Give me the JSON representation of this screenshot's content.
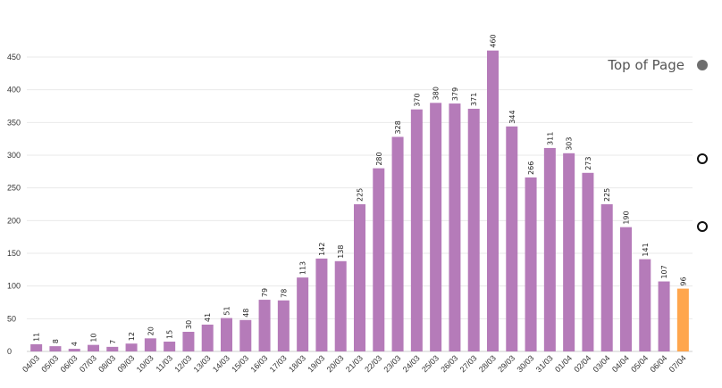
{
  "chart_data": {
    "type": "bar",
    "categories": [
      "04/03",
      "05/03",
      "06/03",
      "07/03",
      "08/03",
      "09/03",
      "10/03",
      "11/03",
      "12/03",
      "13/03",
      "14/03",
      "15/03",
      "16/03",
      "17/03",
      "18/03",
      "19/03",
      "20/03",
      "21/03",
      "22/03",
      "23/03",
      "24/03",
      "25/03",
      "26/03",
      "27/03",
      "28/03",
      "29/03",
      "30/03",
      "31/03",
      "01/04",
      "02/04",
      "03/04",
      "04/04",
      "05/04",
      "06/04",
      "07/04"
    ],
    "values": [
      11,
      8,
      4,
      10,
      7,
      12,
      20,
      15,
      30,
      41,
      51,
      48,
      79,
      78,
      113,
      142,
      138,
      225,
      280,
      328,
      370,
      380,
      379,
      371,
      460,
      344,
      266,
      311,
      303,
      273,
      225,
      190,
      141,
      107,
      96
    ],
    "yticks": [
      0,
      50,
      100,
      150,
      200,
      250,
      300,
      350,
      400,
      450
    ],
    "ylim": [
      0,
      450
    ],
    "grid": true,
    "colors": {
      "bar": "#b57bb9",
      "highlight": "#ffa64d"
    },
    "highlight_index": 34
  },
  "nav": {
    "top_label": "Top of Page",
    "dots": [
      "filled",
      "hollow",
      "hollow"
    ]
  }
}
